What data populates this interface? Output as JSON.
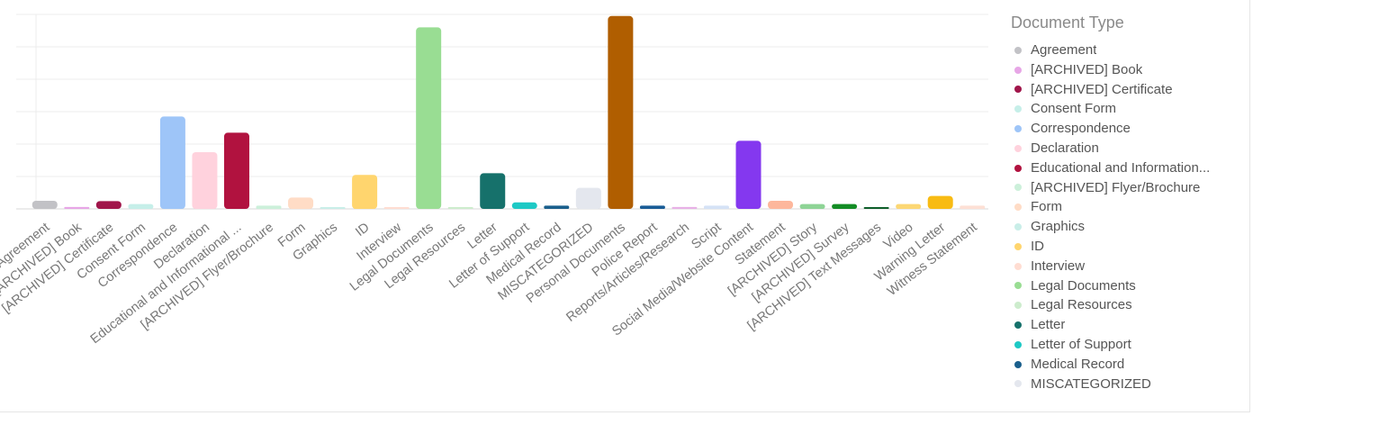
{
  "legend": {
    "title": "Document Type"
  },
  "chart_data": {
    "type": "bar",
    "title": "",
    "xlabel": "",
    "ylabel": "",
    "ylim": [
      0,
      6
    ],
    "grid": true,
    "legend_position": "right",
    "categories": [
      "Agreement",
      "[ARCHIVED] Book",
      "[ARCHIVED] Certificate",
      "Consent Form",
      "Correspondence",
      "Declaration",
      "Educational and Informational ...",
      "[ARCHIVED] Flyer/Brochure",
      "Form",
      "Graphics",
      "ID",
      "Interview",
      "Legal Documents",
      "Legal Resources",
      "Letter",
      "Letter of Support",
      "Medical Record",
      "MISCATEGORIZED",
      "Personal Documents",
      "Police Report",
      "Reports/Articles/Research",
      "Script",
      "Social Media/Website Content",
      "Statement",
      "[ARCHIVED] Story",
      "[ARCHIVED] Survey",
      "[ARCHIVED] Text Messages",
      "Video",
      "Warning Letter",
      "Witness Statement"
    ],
    "values": [
      0.25,
      0.06,
      0.24,
      0.15,
      2.85,
      1.75,
      2.35,
      0.1,
      0.35,
      0.04,
      1.05,
      0.05,
      5.6,
      0.05,
      1.1,
      0.2,
      0.1,
      0.65,
      5.95,
      0.1,
      0.06,
      0.1,
      2.1,
      0.25,
      0.15,
      0.15,
      0.05,
      0.15,
      0.4,
      0.1
    ],
    "colors": [
      "#c2c2c6",
      "#e7a6e6",
      "#a0154a",
      "#c6efe9",
      "#9ec5f8",
      "#ffd2dd",
      "#b1123f",
      "#ccf0da",
      "#ffdcc6",
      "#c9eee8",
      "#ffd56e",
      "#ffddd2",
      "#99dd93",
      "#cdeccd",
      "#16716b",
      "#1ec9c5",
      "#1a5f8c",
      "#e4e7ee",
      "#b05e00",
      "#195c96",
      "#e8b1e6",
      "#d5e2f6",
      "#8438ef",
      "#fdb79c",
      "#8ed496",
      "#138c25",
      "#0e5e2a",
      "#fcd774",
      "#f8bb13",
      "#fde0d5"
    ]
  },
  "legend_items": [
    "Agreement",
    "[ARCHIVED] Book",
    "[ARCHIVED] Certificate",
    "Consent Form",
    "Correspondence",
    "Declaration",
    "Educational and Information...",
    "[ARCHIVED] Flyer/Brochure",
    "Form",
    "Graphics",
    "ID",
    "Interview",
    "Legal Documents",
    "Legal Resources",
    "Letter",
    "Letter of Support",
    "Medical Record",
    "MISCATEGORIZED"
  ]
}
